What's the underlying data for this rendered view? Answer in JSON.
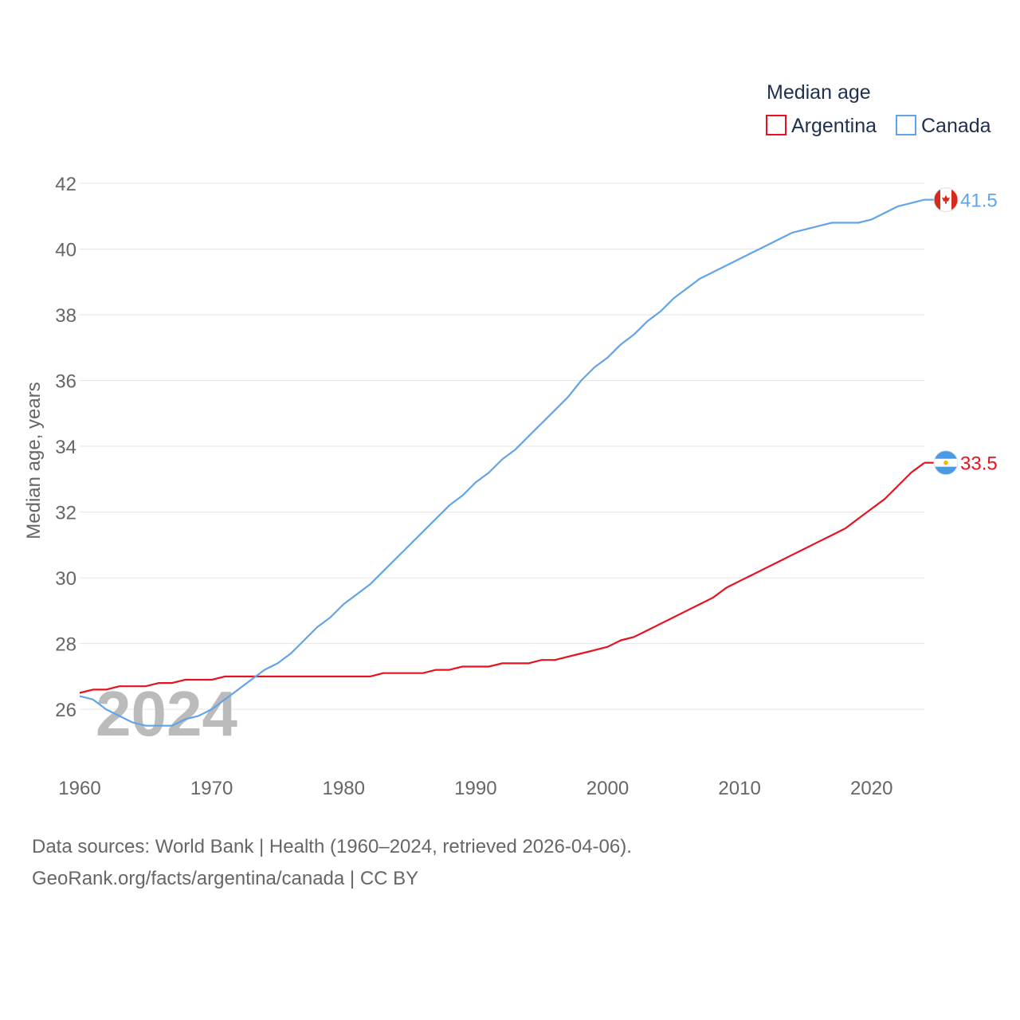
{
  "chart_data": {
    "type": "line",
    "legend_title": "Median age",
    "legend_position": "top-right",
    "ylabel": "Median age, years",
    "xlabel": "",
    "ylim": [
      24.5,
      42
    ],
    "xlim": [
      1960,
      2024
    ],
    "yticks": [
      26,
      28,
      30,
      32,
      34,
      36,
      38,
      40,
      42
    ],
    "xticks": [
      1960,
      1970,
      1980,
      1990,
      2000,
      2010,
      2020
    ],
    "grid": true,
    "year_watermark": "2024",
    "x": [
      1960,
      1961,
      1962,
      1963,
      1964,
      1965,
      1966,
      1967,
      1968,
      1969,
      1970,
      1971,
      1972,
      1973,
      1974,
      1975,
      1976,
      1977,
      1978,
      1979,
      1980,
      1981,
      1982,
      1983,
      1984,
      1985,
      1986,
      1987,
      1988,
      1989,
      1990,
      1991,
      1992,
      1993,
      1994,
      1995,
      1996,
      1997,
      1998,
      1999,
      2000,
      2001,
      2002,
      2003,
      2004,
      2005,
      2006,
      2007,
      2008,
      2009,
      2010,
      2011,
      2012,
      2013,
      2014,
      2015,
      2016,
      2017,
      2018,
      2019,
      2020,
      2021,
      2022,
      2023,
      2024
    ],
    "series": [
      {
        "name": "Argentina",
        "color": "#e8121f",
        "flag": "argentina-flag",
        "end_label": "33.5",
        "values": [
          26.5,
          26.6,
          26.6,
          26.7,
          26.7,
          26.7,
          26.8,
          26.8,
          26.9,
          26.9,
          26.9,
          27.0,
          27.0,
          27.0,
          27.0,
          27.0,
          27.0,
          27.0,
          27.0,
          27.0,
          27.0,
          27.0,
          27.0,
          27.1,
          27.1,
          27.1,
          27.1,
          27.2,
          27.2,
          27.3,
          27.3,
          27.3,
          27.4,
          27.4,
          27.4,
          27.5,
          27.5,
          27.6,
          27.7,
          27.8,
          27.9,
          28.1,
          28.2,
          28.4,
          28.6,
          28.8,
          29.0,
          29.2,
          29.4,
          29.7,
          29.9,
          30.1,
          30.3,
          30.5,
          30.7,
          30.9,
          31.1,
          31.3,
          31.5,
          31.8,
          32.1,
          32.4,
          32.8,
          33.2,
          33.5
        ]
      },
      {
        "name": "Canada",
        "color": "#62a4e8",
        "flag": "canada-flag",
        "end_label": "41.5",
        "values": [
          26.4,
          26.3,
          26.0,
          25.8,
          25.6,
          25.5,
          25.5,
          25.5,
          25.7,
          25.8,
          26.0,
          26.3,
          26.6,
          26.9,
          27.2,
          27.4,
          27.7,
          28.1,
          28.5,
          28.8,
          29.2,
          29.5,
          29.8,
          30.2,
          30.6,
          31.0,
          31.4,
          31.8,
          32.2,
          32.5,
          32.9,
          33.2,
          33.6,
          33.9,
          34.3,
          34.7,
          35.1,
          35.5,
          36.0,
          36.4,
          36.7,
          37.1,
          37.4,
          37.8,
          38.1,
          38.5,
          38.8,
          39.1,
          39.3,
          39.5,
          39.7,
          39.9,
          40.1,
          40.3,
          40.5,
          40.6,
          40.7,
          40.8,
          40.8,
          40.8,
          40.9,
          41.1,
          41.3,
          41.4,
          41.5
        ]
      }
    ]
  },
  "footer": {
    "sources": "Data sources: World Bank | Health (1960–2024, retrieved 2026-04-06).",
    "url": "GeoRank.org/facts/argentina/canada | CC BY"
  }
}
